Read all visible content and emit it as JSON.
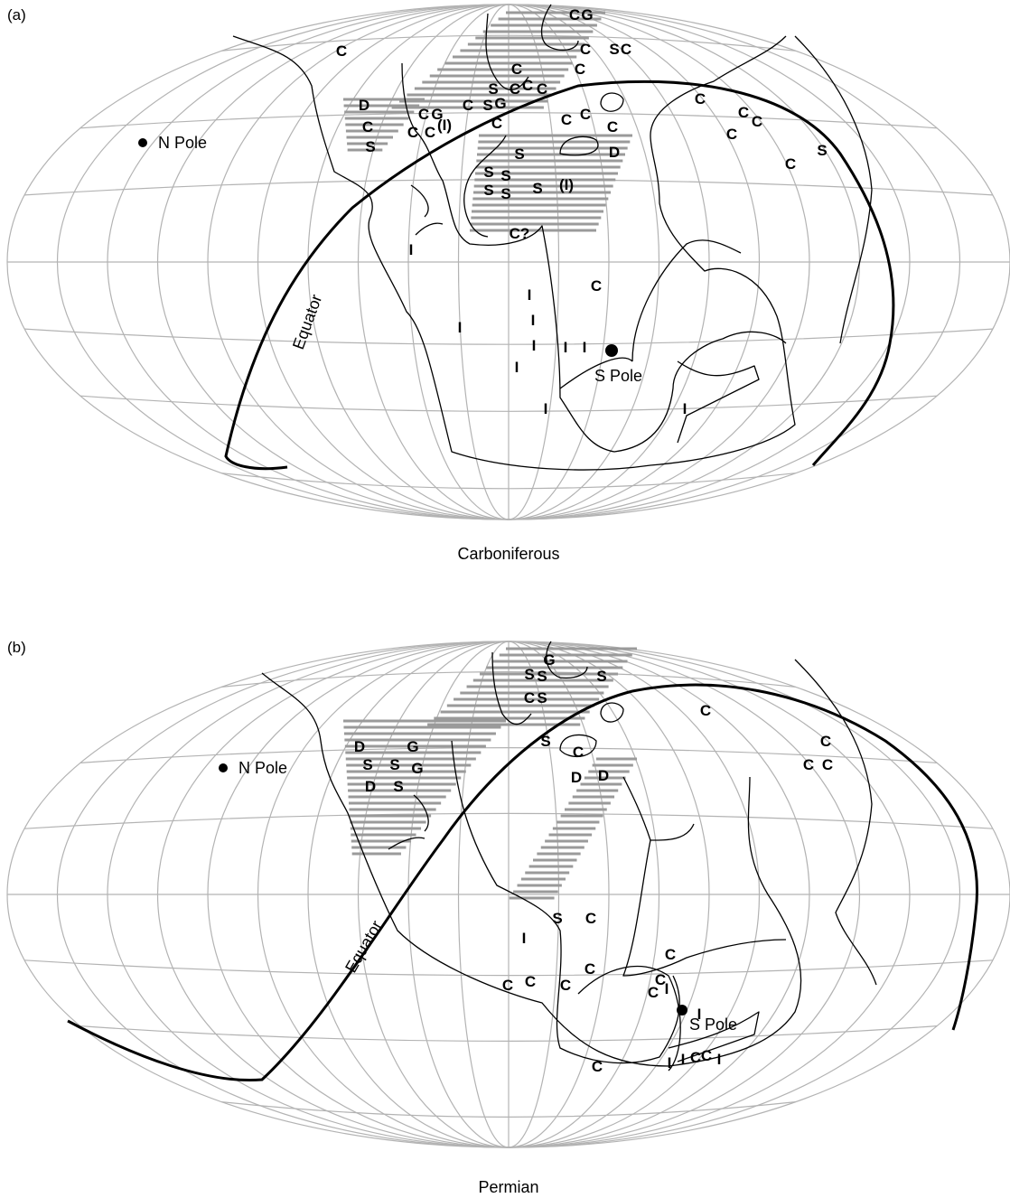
{
  "panels": [
    {
      "id": "a",
      "label": "(a)",
      "caption": "Carboniferous",
      "equator_label": "Equator",
      "north_pole_label": "N Pole",
      "south_pole_label": "S Pole",
      "symbols": [
        "C",
        "G",
        "C",
        "C",
        "S",
        "C",
        "C",
        "S",
        "C",
        "C",
        "C",
        "C",
        "D",
        "C",
        "G",
        "C",
        "C",
        "(I)",
        "S",
        "C",
        "C",
        "G",
        "C",
        "C",
        "C",
        "C",
        "C",
        "C",
        "C",
        "C",
        "D",
        "C",
        "S",
        "S",
        "S",
        "S",
        "S",
        "S",
        "S",
        "S",
        "(I)",
        "C?",
        "I",
        "I",
        "C",
        "I",
        "I",
        "I",
        "I",
        "I",
        "I",
        "I",
        "I",
        "I"
      ]
    },
    {
      "id": "b",
      "label": "(b)",
      "caption": "Permian",
      "equator_label": "Equator",
      "north_pole_label": "N Pole",
      "south_pole_label": "S Pole",
      "symbols": [
        "G",
        "S",
        "S",
        "S",
        "C",
        "S",
        "C",
        "S",
        "D",
        "G",
        "S",
        "S",
        "G",
        "D",
        "S",
        "C",
        "C",
        "C",
        "C",
        "D",
        "D",
        "S",
        "C",
        "I",
        "C",
        "C",
        "I",
        "C",
        "C",
        "C",
        "C",
        "C",
        "I",
        "I",
        "I",
        "C",
        "C",
        "I",
        "C",
        "C"
      ]
    }
  ],
  "legend_codes": {
    "C": "C",
    "S": "S",
    "D": "D",
    "G": "G",
    "I": "I"
  }
}
